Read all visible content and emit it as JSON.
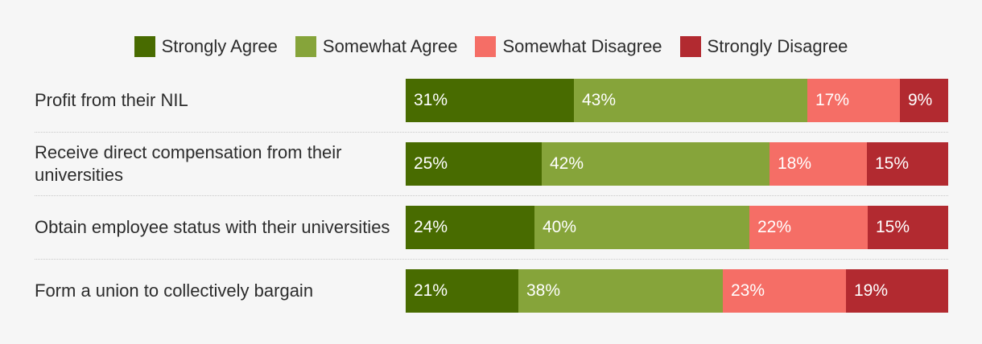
{
  "chart_data": {
    "type": "bar",
    "orientation": "horizontal",
    "stacked": true,
    "normalized": true,
    "legend_position": "top",
    "categories": [
      "Profit from their NIL",
      "Receive direct compensation from their universities",
      "Obtain employee status with their universities",
      "Form a union to collectively bargain"
    ],
    "series": [
      {
        "name": "Strongly Agree",
        "color": "#486b00",
        "values": [
          31,
          25,
          24,
          21
        ],
        "labels": [
          "31%",
          "25%",
          "24%",
          "21%"
        ]
      },
      {
        "name": "Somewhat Agree",
        "color": "#86a43a",
        "values": [
          43,
          42,
          40,
          38
        ],
        "labels": [
          "43%",
          "42%",
          "40%",
          "38%"
        ]
      },
      {
        "name": "Somewhat Disagree",
        "color": "#f56e66",
        "values": [
          17,
          18,
          22,
          23
        ],
        "labels": [
          "17%",
          "18%",
          "22%",
          "23%"
        ]
      },
      {
        "name": "Strongly Disagree",
        "color": "#b22a30",
        "values": [
          9,
          15,
          15,
          19
        ],
        "labels": [
          "9%",
          "15%",
          "15%",
          "19%"
        ]
      }
    ]
  }
}
